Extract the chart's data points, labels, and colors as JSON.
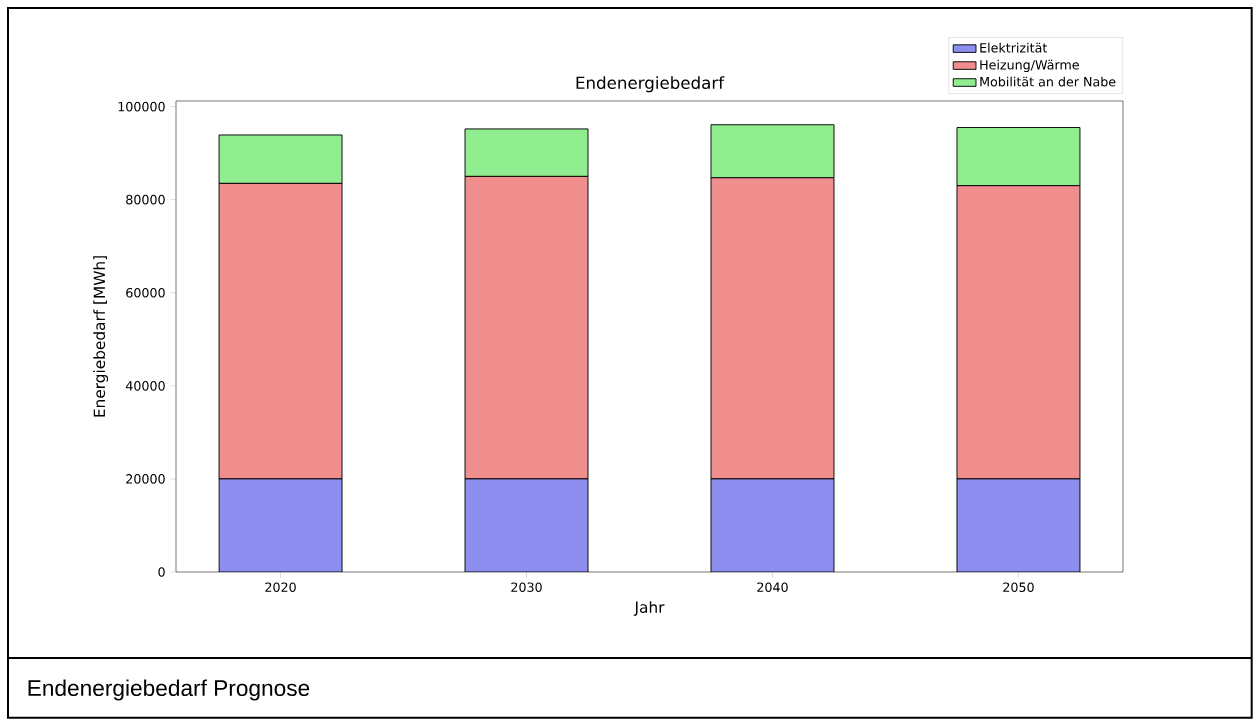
{
  "chart_data": {
    "type": "bar",
    "title": "Endenergiebedarf",
    "xlabel": "Jahr",
    "ylabel": "Energiebedarf [MWh]",
    "categories": [
      "2020",
      "2030",
      "2040",
      "2050"
    ],
    "series": [
      {
        "name": "Elektrizität",
        "color": "#8e8ef0",
        "values": [
          20000,
          20000,
          20000,
          20000
        ]
      },
      {
        "name": "Heizung/Wärme",
        "color": "#f08e8e",
        "values": [
          63500,
          65000,
          64700,
          63000
        ]
      },
      {
        "name": "Mobilität an der Nabe",
        "color": "#90ee90",
        "values": [
          10400,
          10200,
          11400,
          12500
        ]
      }
    ],
    "stacked": true,
    "ylim": [
      0,
      101200
    ],
    "yticks": [
      0,
      20000,
      40000,
      60000,
      80000,
      100000
    ],
    "legend": "top right",
    "annotations": [
      "Endenergiebedarf Prognose"
    ]
  }
}
